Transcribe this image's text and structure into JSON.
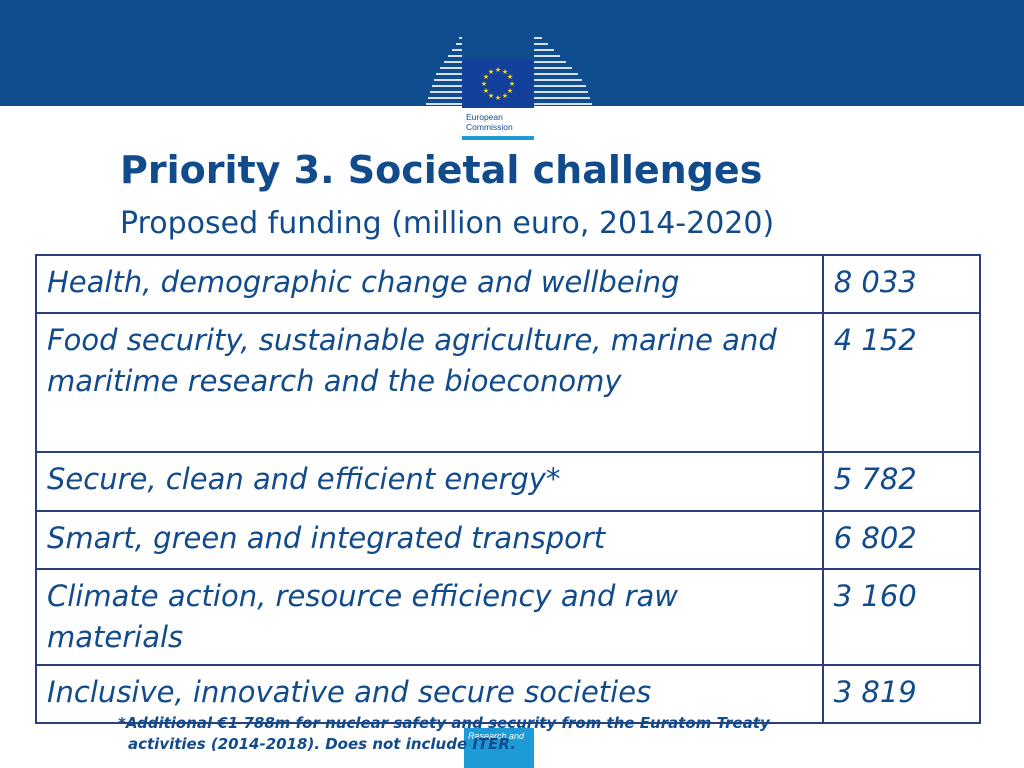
{
  "header": {
    "logo": {
      "line1": "European",
      "line2": "Commission",
      "icon": "eu-flag-icon",
      "colors": {
        "band": "#0f4d8e",
        "flag": "#12409a",
        "stars": "#ffd700",
        "accent": "#1e9ad6"
      }
    }
  },
  "title": "Priority 3. Societal challenges",
  "subtitle": "Proposed funding (million euro, 2014-2020)",
  "table": {
    "rows": [
      {
        "topic": "Health, demographic change and wellbeing",
        "amount": "8 033"
      },
      {
        "topic": "Food security, sustainable agriculture, marine and maritime research and the bioeconomy",
        "amount": "4 152"
      },
      {
        "topic": "Secure, clean and efficient energy*",
        "amount": "5 782"
      },
      {
        "topic": "Smart, green and integrated transport",
        "amount": "6 802"
      },
      {
        "topic": "Climate action, resource efficiency and raw materials",
        "amount": "3 160"
      },
      {
        "topic": "Inclusive, innovative and secure societies",
        "amount": "3 819"
      }
    ]
  },
  "footnote": {
    "line1": "*Additional €1 788m for nuclear safety and security from the Euratom Treaty",
    "line2": "activities (2014-2018). Does not include ITER."
  },
  "footer": {
    "tab_label": "Research and"
  }
}
